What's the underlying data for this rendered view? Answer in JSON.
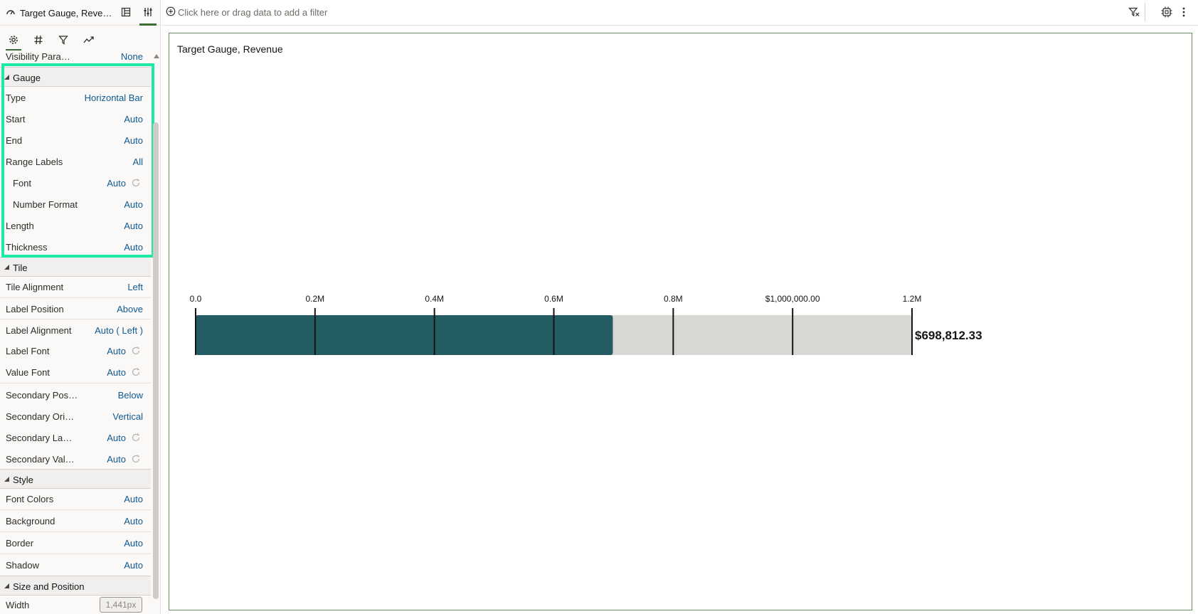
{
  "panel": {
    "title": "Target Gauge, Reve…",
    "tabs": [
      "General",
      "Values",
      "Filters",
      "Analytics"
    ]
  },
  "properties": {
    "visibility": {
      "label": "Visibility Para…",
      "value": "None"
    },
    "gauge": {
      "title": "Gauge",
      "type": {
        "label": "Type",
        "value": "Horizontal Bar"
      },
      "start": {
        "label": "Start",
        "value": "Auto"
      },
      "end": {
        "label": "End",
        "value": "Auto"
      },
      "range_labels": {
        "label": "Range Labels",
        "value": "All"
      },
      "font": {
        "label": "Font",
        "value": "Auto"
      },
      "number_format": {
        "label": "Number Format",
        "value": "Auto"
      },
      "length": {
        "label": "Length",
        "value": "Auto"
      },
      "thickness": {
        "label": "Thickness",
        "value": "Auto"
      }
    },
    "tile": {
      "title": "Tile",
      "tile_alignment": {
        "label": "Tile Alignment",
        "value": "Left"
      },
      "label_position": {
        "label": "Label Position",
        "value": "Above"
      },
      "label_alignment": {
        "label": "Label Alignment",
        "value": "Auto ( Left )"
      },
      "label_font": {
        "label": "Label Font",
        "value": "Auto"
      },
      "value_font": {
        "label": "Value Font",
        "value": "Auto"
      },
      "secondary_position": {
        "label": "Secondary Pos…",
        "value": "Below"
      },
      "secondary_orientation": {
        "label": "Secondary Ori…",
        "value": "Vertical"
      },
      "secondary_label": {
        "label": "Secondary La…",
        "value": "Auto"
      },
      "secondary_value": {
        "label": "Secondary Val…",
        "value": "Auto"
      }
    },
    "style": {
      "title": "Style",
      "font_colors": {
        "label": "Font Colors",
        "value": "Auto"
      },
      "background": {
        "label": "Background",
        "value": "Auto"
      },
      "border": {
        "label": "Border",
        "value": "Auto"
      },
      "shadow": {
        "label": "Shadow",
        "value": "Auto"
      }
    },
    "size_position": {
      "title": "Size and Position",
      "width": {
        "label": "Width",
        "value": "1,441px"
      }
    }
  },
  "filter_bar": {
    "placeholder": "Click here or drag data to add a filter"
  },
  "canvas": {
    "title": "Target Gauge, Revenue"
  },
  "chart_data": {
    "type": "bar",
    "orientation": "horizontal",
    "title": "Target Gauge, Revenue",
    "value": 698812.33,
    "value_label": "$698,812.33",
    "min": 0,
    "max": 1200000,
    "ticks": [
      {
        "value": 0,
        "label": "0.0"
      },
      {
        "value": 200000,
        "label": "0.2M"
      },
      {
        "value": 400000,
        "label": "0.4M"
      },
      {
        "value": 600000,
        "label": "0.6M"
      },
      {
        "value": 800000,
        "label": "0.8M"
      },
      {
        "value": 1000000,
        "label": "$1,000,000.00"
      },
      {
        "value": 1200000,
        "label": "1.2M"
      }
    ],
    "colors": {
      "fill": "#245c64",
      "track": "#d9d7d4",
      "tick": "#161513"
    }
  }
}
